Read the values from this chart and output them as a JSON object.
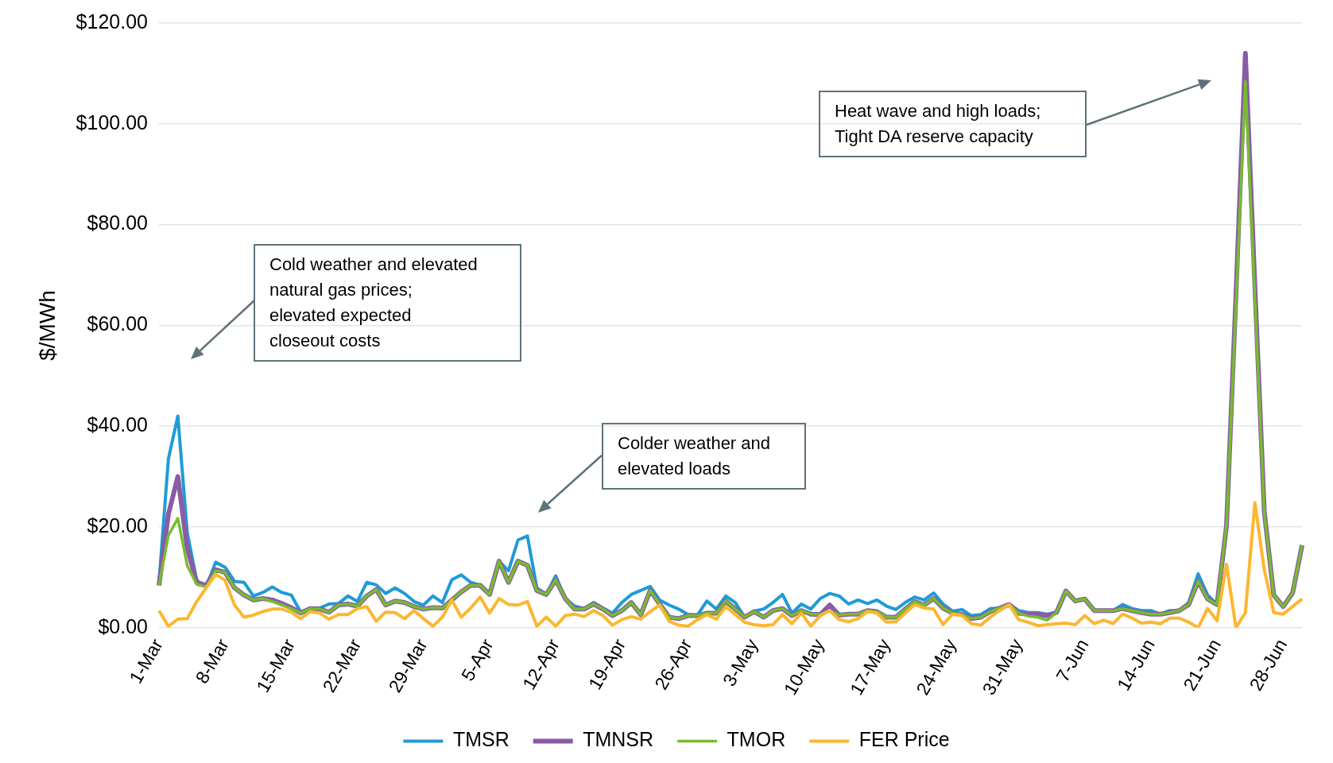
{
  "chart_data": {
    "type": "line",
    "ylabel": "$/MWh",
    "categories": [
      "1-Mar",
      null,
      null,
      null,
      null,
      null,
      null,
      "8-Mar",
      null,
      null,
      null,
      null,
      null,
      null,
      "15-Mar",
      null,
      null,
      null,
      null,
      null,
      null,
      "22-Mar",
      null,
      null,
      null,
      null,
      null,
      null,
      "29-Mar",
      null,
      null,
      null,
      null,
      null,
      null,
      "5-Apr",
      null,
      null,
      null,
      null,
      null,
      null,
      "12-Apr",
      null,
      null,
      null,
      null,
      null,
      null,
      "19-Apr",
      null,
      null,
      null,
      null,
      null,
      null,
      "26-Apr",
      null,
      null,
      null,
      null,
      null,
      null,
      "3-May",
      null,
      null,
      null,
      null,
      null,
      null,
      "10-May",
      null,
      null,
      null,
      null,
      null,
      null,
      "17-May",
      null,
      null,
      null,
      null,
      null,
      null,
      "24-May",
      null,
      null,
      null,
      null,
      null,
      null,
      "31-May",
      null,
      null,
      null,
      null,
      null,
      null,
      "7-Jun",
      null,
      null,
      null,
      null,
      null,
      null,
      "14-Jun",
      null,
      null,
      null,
      null,
      null,
      null,
      "21-Jun",
      null,
      null,
      null,
      null,
      null,
      null,
      "28-Jun",
      null,
      null
    ],
    "series": [
      {
        "name": "TMSR",
        "color": "#1f9bd7",
        "values": [
          8.9,
          33.5,
          42,
          18.8,
          9.4,
          8.1,
          13,
          12,
          9.2,
          9,
          6.3,
          7,
          8.1,
          7,
          6.5,
          3.1,
          3.9,
          3.9,
          4.7,
          4.8,
          6.3,
          5.2,
          9,
          8.5,
          6.8,
          7.9,
          6.8,
          5.2,
          4.5,
          6.3,
          5,
          9.5,
          10.5,
          9,
          8.4,
          6.6,
          13.2,
          11.3,
          17.4,
          18.2,
          7.9,
          6.6,
          10.3,
          5.8,
          4.3,
          3.8,
          5,
          3.9,
          2.9,
          5,
          6.6,
          7.4,
          8.2,
          5.5,
          4.5,
          3.7,
          2.6,
          2.5,
          5.3,
          3.7,
          6.3,
          5,
          2.1,
          3.3,
          3.7,
          5,
          6.6,
          2.9,
          4.7,
          3.7,
          5.8,
          6.8,
          6.3,
          4.7,
          5.5,
          4.8,
          5.5,
          4.3,
          3.6,
          5,
          6.1,
          5.5,
          6.9,
          4.7,
          3.3,
          3.6,
          2.4,
          2.6,
          3.8,
          3.9,
          4.7,
          3.4,
          3,
          3,
          2.7,
          3,
          7.3,
          5.3,
          5.7,
          3.4,
          3.4,
          3.4,
          4.6,
          3.8,
          3.4,
          3.4,
          2.7,
          3.4,
          3.4,
          5,
          10.7,
          6.5,
          4.6,
          20.2,
          null,
          null,
          null,
          null,
          null,
          null,
          null,
          null
        ]
      },
      {
        "name": "TMNSR",
        "color": "#8a5ba7",
        "values": [
          8.4,
          22.5,
          30,
          15.7,
          9,
          8.4,
          11.5,
          11,
          7.9,
          6.5,
          5.5,
          5.8,
          5.5,
          4.8,
          4,
          2.9,
          3.8,
          3.7,
          3.1,
          4.5,
          4.7,
          4.3,
          6.3,
          7.6,
          4.5,
          5.3,
          5,
          4.2,
          3.7,
          4,
          3.9,
          5.5,
          7.1,
          8.4,
          8.4,
          6.6,
          13.2,
          9,
          13.2,
          12.4,
          7.4,
          6.6,
          9.5,
          5.8,
          3.7,
          3.7,
          4.7,
          3.7,
          2.4,
          3.4,
          5,
          2.6,
          7.4,
          4.7,
          2.1,
          1.8,
          2.4,
          2.4,
          2.9,
          2.9,
          5.3,
          3.7,
          2.1,
          3.2,
          2.1,
          3.4,
          3.8,
          2.4,
          3.4,
          2.7,
          2.6,
          4.5,
          2.5,
          2.7,
          2.7,
          3.4,
          3.2,
          2.1,
          2.1,
          3.7,
          5.2,
          4.5,
          5.8,
          3.9,
          2.9,
          2.6,
          1.8,
          2.1,
          3.2,
          3.9,
          4.6,
          2.9,
          2.7,
          2.7,
          2.4,
          3,
          7.3,
          5.3,
          5.7,
          3.4,
          3.4,
          3.4,
          3.8,
          3.4,
          3,
          2.7,
          2.7,
          3,
          3.4,
          4.6,
          9.2,
          5.7,
          4.6,
          20.2,
          66,
          114,
          68,
          23,
          6.5,
          4.2,
          6.9,
          16.4
        ]
      },
      {
        "name": "TMOR",
        "color": "#77bc2f",
        "values": [
          8.4,
          18.3,
          21.7,
          12.3,
          8.6,
          8.1,
          11.3,
          11,
          7.9,
          6.5,
          5.5,
          5.8,
          5.2,
          4.5,
          3.8,
          2.9,
          3.8,
          3.7,
          3.1,
          4.5,
          4.7,
          4.3,
          6.3,
          7.6,
          4.5,
          5.3,
          5,
          4.2,
          3.7,
          4,
          3.9,
          5.5,
          7.1,
          8.4,
          8.4,
          6.6,
          13.2,
          9,
          13.2,
          12.4,
          7.4,
          6.6,
          9.5,
          5.8,
          3.7,
          3.7,
          4.7,
          3.7,
          2.4,
          3.4,
          5,
          2.6,
          7.4,
          4.7,
          2.1,
          1.8,
          2.4,
          2.4,
          2.9,
          2.9,
          5.3,
          3.7,
          2.1,
          3.2,
          2.1,
          3.4,
          3.8,
          2.4,
          3.4,
          2.7,
          2.6,
          3.4,
          2.5,
          2.7,
          2.7,
          3.4,
          3.2,
          2.1,
          2.1,
          3.7,
          5.2,
          4.5,
          5.8,
          3.9,
          2.9,
          2.6,
          1.8,
          2.1,
          3.2,
          3.9,
          4.6,
          2.9,
          2.3,
          2.1,
          1.5,
          3,
          7.3,
          5.3,
          5.7,
          3.4,
          3.4,
          3.4,
          3.8,
          3.4,
          3,
          2.7,
          2.7,
          3,
          3.4,
          4.6,
          9.2,
          5.7,
          4.6,
          20.2,
          64,
          108.4,
          65.6,
          22.9,
          6.5,
          4.2,
          6.9,
          16.4
        ]
      },
      {
        "name": "FER Price",
        "color": "#fbb732",
        "values": [
          3.4,
          0.3,
          1.7,
          1.8,
          5.2,
          7.9,
          10.6,
          9.4,
          4.5,
          2.1,
          2.5,
          3.2,
          3.7,
          3.7,
          3.1,
          1.8,
          3.2,
          2.9,
          1.7,
          2.6,
          2.6,
          3.8,
          4.2,
          1.3,
          3.1,
          3,
          1.8,
          3.4,
          1.8,
          0.3,
          2.1,
          5.5,
          2.1,
          3.9,
          6.1,
          2.9,
          5.8,
          4.6,
          4.5,
          5.2,
          0.3,
          2.1,
          0.3,
          2.4,
          2.7,
          2.2,
          3.4,
          2.4,
          0.5,
          1.6,
          2.2,
          1.7,
          3.2,
          4.5,
          1.3,
          0.5,
          0.3,
          1.6,
          2.6,
          1.7,
          4.2,
          2.6,
          1.1,
          0.6,
          0.4,
          0.6,
          2.6,
          0.8,
          2.9,
          0.3,
          2.4,
          3.4,
          1.6,
          1.2,
          1.8,
          3.2,
          2.9,
          1.1,
          1.2,
          2.9,
          4.6,
          3.9,
          3.7,
          0.6,
          2.7,
          2.4,
          0.8,
          0.5,
          2.1,
          3.4,
          4.6,
          1.6,
          1.1,
          0.4,
          0.6,
          0.8,
          0.9,
          0.6,
          2.4,
          0.8,
          1.5,
          0.8,
          2.7,
          1.9,
          0.9,
          1.1,
          0.8,
          1.9,
          1.9,
          1.1,
          0,
          3.8,
          1.4,
          12.6,
          0,
          3,
          24.8,
          11.5,
          3,
          2.7,
          4.2,
          5.7
        ]
      }
    ],
    "ylim": [
      0,
      120
    ],
    "yticks": [
      {
        "value": 0,
        "label": "$0.00"
      },
      {
        "value": 20,
        "label": "$20.00"
      },
      {
        "value": 40,
        "label": "$40.00"
      },
      {
        "value": 60,
        "label": "$60.00"
      },
      {
        "value": 80,
        "label": "$80.00"
      },
      {
        "value": 100,
        "label": "$100.00"
      },
      {
        "value": 120,
        "label": "$120.00"
      }
    ],
    "grid": "y",
    "legend": "bottom",
    "marker": "none",
    "line_style": "solid",
    "annotations": [
      "Cold weather and elevated natural gas prices; elevated expected closeout costs",
      "Colder weather and elevated loads",
      "Heat wave and high loads; Tight DA reserve capacity"
    ]
  }
}
